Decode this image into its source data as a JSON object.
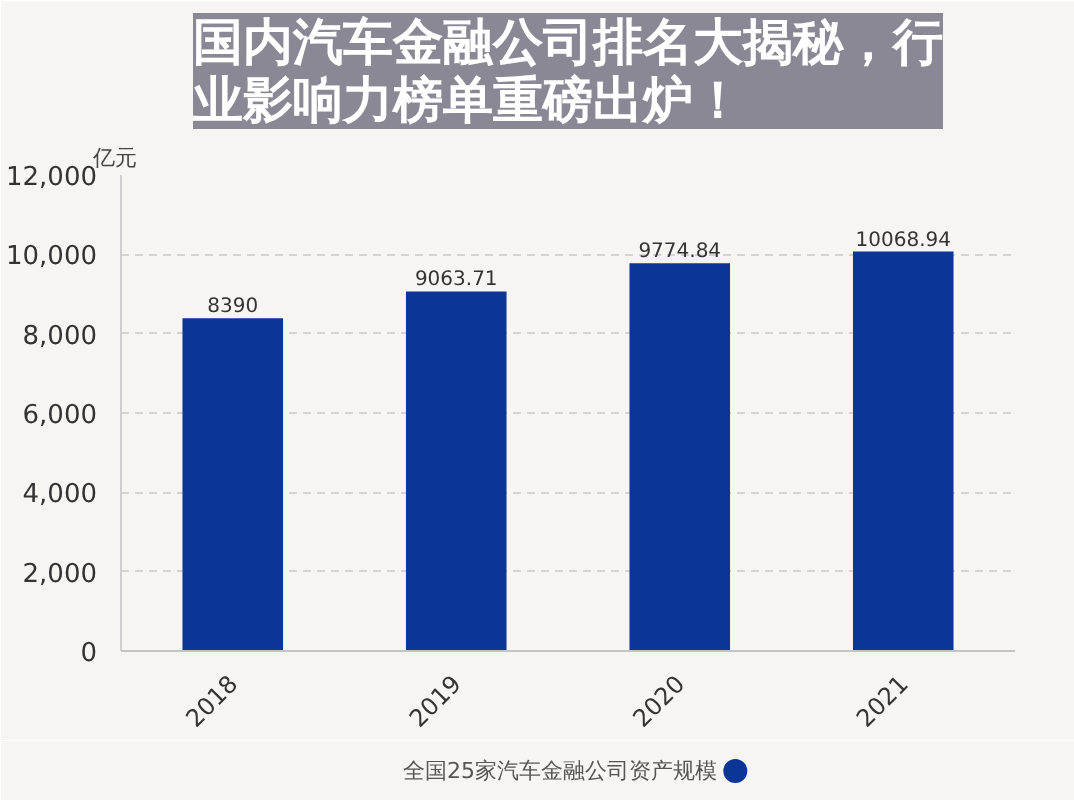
{
  "chart_data": {
    "type": "bar",
    "title": "国内汽车金融公司排名大揭秘，行业影响力榜单重磅出炉！",
    "ylabel": "亿元",
    "categories": [
      "2018",
      "2019",
      "2020",
      "2021"
    ],
    "series": [
      {
        "name": "全国25家汽车金融公司资产规模",
        "color": "#0c3598",
        "values": [
          8390,
          9063.71,
          9774.84,
          10068.94
        ]
      }
    ],
    "ylim": [
      0,
      12000
    ],
    "yticks": [
      0,
      {
        "value": 2000,
        "label": "2,000"
      },
      {
        "value": 4000,
        "label": "4,000"
      },
      {
        "value": 6000,
        "label": "6,000"
      },
      {
        "value": 8000,
        "label": "8,000"
      },
      {
        "value": 10000,
        "label": "10,000"
      },
      {
        "value": 12000,
        "label": "12,000"
      }
    ],
    "data_labels": true,
    "grid": "y",
    "legend": "bottom"
  }
}
